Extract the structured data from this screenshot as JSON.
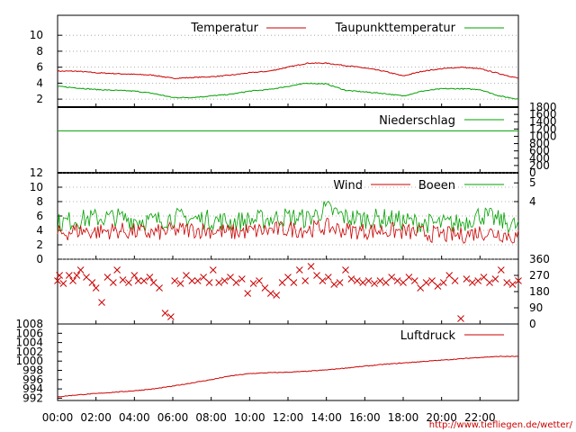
{
  "colors": {
    "red": "#cc0000",
    "green": "#00a000",
    "grid": "#999999",
    "axis": "#000000"
  },
  "x_ticks": [
    "00:00",
    "02:00",
    "04:00",
    "06:00",
    "08:00",
    "10:00",
    "12:00",
    "14:00",
    "16:00",
    "18:00",
    "20:00",
    "22:00"
  ],
  "source_url": "http://www.tiefliegen.de/wetter/",
  "chart_data": [
    {
      "type": "line",
      "x_unit": "hour of day",
      "xlim": [
        0,
        24
      ],
      "ylim": [
        1,
        12.5
      ],
      "y_ticks_left": [
        "10",
        "8",
        "6",
        "4",
        "2"
      ],
      "y_tick_values": [
        10,
        8,
        6,
        4,
        2
      ],
      "legend_position": "top",
      "series": [
        {
          "name": "Temperatur",
          "color": "red",
          "x": [
            0,
            1,
            2,
            3,
            4,
            5,
            6,
            7,
            8,
            9,
            10,
            11,
            12,
            13,
            14,
            15,
            16,
            17,
            18,
            19,
            20,
            21,
            22,
            23,
            24
          ],
          "y": [
            5.5,
            5.5,
            5.3,
            5.2,
            5.1,
            5.0,
            4.6,
            4.7,
            4.8,
            5.0,
            5.3,
            5.5,
            6.0,
            6.5,
            6.5,
            6.2,
            5.9,
            5.5,
            4.9,
            5.5,
            5.8,
            6.0,
            5.8,
            5.2,
            4.6
          ]
        },
        {
          "name": "Taupunkttemperatur",
          "color": "green",
          "x": [
            0,
            1,
            2,
            3,
            4,
            5,
            6,
            7,
            8,
            9,
            10,
            11,
            12,
            13,
            14,
            15,
            16,
            17,
            18,
            19,
            20,
            21,
            22,
            23,
            24
          ],
          "y": [
            3.6,
            3.4,
            3.2,
            3.1,
            3.0,
            2.7,
            2.2,
            2.2,
            2.4,
            2.6,
            3.0,
            3.2,
            3.6,
            4.0,
            3.9,
            3.1,
            2.9,
            2.7,
            2.4,
            3.0,
            3.3,
            3.3,
            3.2,
            2.4,
            2.0
          ]
        }
      ]
    },
    {
      "type": "line",
      "x_unit": "hour of day",
      "xlim": [
        0,
        24
      ],
      "ylim": [
        0,
        1800
      ],
      "y_ticks_right": [
        "1800",
        "1600",
        "1400",
        "1200",
        "1000",
        "800",
        "600",
        "400",
        "200",
        "0"
      ],
      "y_tick_values": [
        1800,
        1600,
        1400,
        1200,
        1000,
        800,
        600,
        400,
        200,
        0
      ],
      "legend_position": "top-right",
      "series": [
        {
          "name": "Niederschlag",
          "color": "green",
          "x": [
            0,
            24
          ],
          "y": [
            1150,
            1150
          ]
        }
      ]
    },
    {
      "type": "line",
      "x_unit": "hour of day",
      "xlim": [
        0,
        24
      ],
      "ylim": [
        0,
        12
      ],
      "y_ticks_left": [
        "12",
        "10",
        "8",
        "6",
        "4",
        "2",
        "0"
      ],
      "y_tick_values": [
        12,
        10,
        8,
        6,
        4,
        2,
        0
      ],
      "y_ticks_right": [
        "5",
        "4"
      ],
      "y_tick_right_values": [
        10.6,
        8.0
      ],
      "legend_position": "top-right",
      "series": [
        {
          "name": "Wind",
          "color": "red",
          "x": [
            0,
            1,
            2,
            3,
            4,
            5,
            6,
            7,
            8,
            9,
            10,
            11,
            12,
            13,
            14,
            15,
            16,
            17,
            18,
            19,
            20,
            21,
            22,
            23,
            24
          ],
          "y": [
            3.5,
            4.0,
            3.8,
            4.0,
            3.8,
            3.6,
            4.0,
            4.1,
            4.0,
            3.7,
            3.9,
            4.0,
            4.2,
            4.1,
            4.5,
            4.0,
            3.9,
            4.0,
            3.8,
            3.6,
            3.4,
            3.3,
            3.8,
            3.6,
            3.0
          ]
        },
        {
          "name": "Boeen",
          "color": "green",
          "x": [
            0,
            1,
            2,
            3,
            4,
            5,
            6,
            7,
            8,
            9,
            10,
            11,
            12,
            13,
            14,
            15,
            16,
            17,
            18,
            19,
            20,
            21,
            22,
            23,
            24
          ],
          "y": [
            5.0,
            5.5,
            5.7,
            5.8,
            5.5,
            5.3,
            5.8,
            5.6,
            5.5,
            5.2,
            5.4,
            5.6,
            5.9,
            5.6,
            7.0,
            5.8,
            5.6,
            5.7,
            5.3,
            5.0,
            4.9,
            5.0,
            6.2,
            5.4,
            4.5
          ]
        }
      ]
    },
    {
      "type": "scatter",
      "x_unit": "hour of day",
      "xlim": [
        0,
        24
      ],
      "ylim": [
        0,
        360
      ],
      "y_ticks_right": [
        "360",
        "270",
        "180",
        "90",
        "0"
      ],
      "y_tick_values": [
        360,
        270,
        180,
        90,
        0
      ],
      "marker": "x",
      "series": [
        {
          "color": "red",
          "x": [
            0.0,
            0.1,
            0.3,
            0.6,
            0.8,
            1.0,
            1.2,
            1.5,
            1.8,
            2.0,
            2.3,
            2.6,
            2.9,
            3.1,
            3.4,
            3.7,
            4.0,
            4.2,
            4.5,
            4.8,
            5.0,
            5.3,
            5.6,
            5.9,
            6.1,
            6.4,
            6.7,
            7.0,
            7.3,
            7.6,
            7.9,
            8.1,
            8.4,
            8.7,
            9.0,
            9.3,
            9.6,
            9.9,
            10.2,
            10.5,
            10.8,
            11.1,
            11.4,
            11.7,
            12.0,
            12.3,
            12.6,
            12.9,
            13.2,
            13.5,
            13.8,
            14.1,
            14.4,
            14.7,
            15.0,
            15.3,
            15.6,
            15.9,
            16.2,
            16.5,
            16.8,
            17.1,
            17.4,
            17.7,
            18.0,
            18.3,
            18.6,
            18.9,
            19.2,
            19.5,
            19.8,
            20.1,
            20.4,
            20.7,
            21.0,
            21.3,
            21.6,
            21.9,
            22.2,
            22.5,
            22.8,
            23.1,
            23.4,
            23.7,
            24.0
          ],
          "y": [
            240,
            270,
            225,
            270,
            240,
            270,
            300,
            260,
            230,
            200,
            120,
            260,
            230,
            300,
            245,
            230,
            270,
            240,
            240,
            260,
            230,
            200,
            60,
            40,
            240,
            225,
            270,
            240,
            240,
            260,
            230,
            300,
            230,
            240,
            260,
            230,
            250,
            170,
            225,
            240,
            200,
            170,
            160,
            230,
            260,
            230,
            300,
            240,
            320,
            270,
            240,
            260,
            220,
            230,
            300,
            250,
            240,
            230,
            240,
            225,
            240,
            230,
            260,
            240,
            230,
            260,
            240,
            200,
            230,
            240,
            210,
            230,
            270,
            240,
            30,
            250,
            230,
            240,
            260,
            230,
            250,
            300,
            230,
            220,
            240
          ]
        }
      ]
    },
    {
      "type": "line",
      "x_unit": "hour of day",
      "xlim": [
        0,
        24
      ],
      "ylim": [
        991.5,
        1008
      ],
      "y_ticks_left": [
        "1008",
        "1006",
        "1004",
        "1002",
        "1000",
        "998",
        "996",
        "994",
        "992"
      ],
      "y_tick_values": [
        1008,
        1006,
        1004,
        1002,
        1000,
        998,
        996,
        994,
        992
      ],
      "legend_position": "top-right",
      "series": [
        {
          "name": "Luftdruck",
          "color": "red",
          "x": [
            0,
            1,
            2,
            3,
            4,
            5,
            6,
            7,
            8,
            9,
            10,
            11,
            12,
            13,
            14,
            15,
            16,
            17,
            18,
            19,
            20,
            21,
            22,
            23,
            24
          ],
          "y": [
            992.3,
            992.7,
            993.0,
            993.3,
            993.6,
            994.0,
            994.6,
            995.3,
            996.0,
            996.8,
            997.3,
            997.5,
            997.6,
            997.8,
            998.1,
            998.5,
            998.9,
            999.3,
            999.6,
            999.9,
            1000.2,
            1000.5,
            1000.8,
            1001.0,
            1001.0
          ]
        }
      ]
    }
  ]
}
